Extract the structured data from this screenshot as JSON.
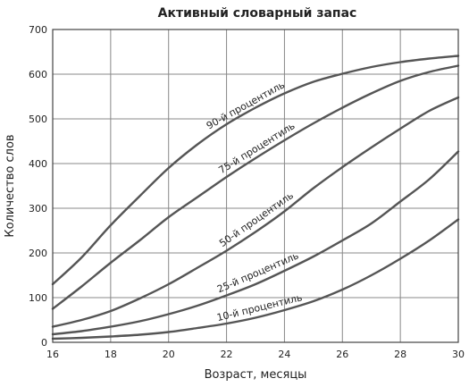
{
  "chart_data": {
    "type": "line",
    "title": "Активный словарный запас",
    "xlabel": "Возраст, месяцы",
    "ylabel": "Количество слов",
    "xlim": [
      16,
      30
    ],
    "ylim": [
      0,
      700
    ],
    "x_ticks": [
      "16",
      "18",
      "20",
      "22",
      "24",
      "26",
      "28",
      "30"
    ],
    "y_ticks": [
      "0",
      "100",
      "200",
      "300",
      "400",
      "500",
      "600",
      "700"
    ],
    "grid": true,
    "legend": "none (series labeled directly on curves)",
    "colors": {
      "curve": "#555555",
      "grid": "#888888",
      "text": "#222222"
    },
    "series": [
      {
        "name": "90-й процентиль",
        "points": [
          [
            16,
            130
          ],
          [
            17,
            190
          ],
          [
            18,
            262
          ],
          [
            19,
            327
          ],
          [
            20,
            390
          ],
          [
            21,
            443
          ],
          [
            22,
            488
          ],
          [
            23,
            525
          ],
          [
            24,
            557
          ],
          [
            25,
            583
          ],
          [
            26,
            601
          ],
          [
            27,
            616
          ],
          [
            28,
            627
          ],
          [
            29,
            635
          ],
          [
            30,
            641
          ]
        ]
      },
      {
        "name": "75-й процентиль",
        "points": [
          [
            16,
            75
          ],
          [
            17,
            125
          ],
          [
            18,
            178
          ],
          [
            19,
            228
          ],
          [
            20,
            280
          ],
          [
            21,
            325
          ],
          [
            22,
            370
          ],
          [
            23,
            412
          ],
          [
            24,
            452
          ],
          [
            25,
            490
          ],
          [
            26,
            525
          ],
          [
            27,
            557
          ],
          [
            28,
            585
          ],
          [
            29,
            605
          ],
          [
            30,
            619
          ]
        ]
      },
      {
        "name": "50-й процентиль",
        "points": [
          [
            16,
            35
          ],
          [
            17,
            50
          ],
          [
            18,
            70
          ],
          [
            19,
            98
          ],
          [
            20,
            130
          ],
          [
            21,
            167
          ],
          [
            22,
            205
          ],
          [
            23,
            247
          ],
          [
            24,
            293
          ],
          [
            25,
            345
          ],
          [
            26,
            392
          ],
          [
            27,
            436
          ],
          [
            28,
            478
          ],
          [
            29,
            518
          ],
          [
            30,
            548
          ]
        ]
      },
      {
        "name": "25-й процентиль",
        "points": [
          [
            16,
            18
          ],
          [
            17,
            25
          ],
          [
            18,
            35
          ],
          [
            19,
            47
          ],
          [
            20,
            63
          ],
          [
            21,
            82
          ],
          [
            22,
            105
          ],
          [
            23,
            130
          ],
          [
            24,
            160
          ],
          [
            25,
            192
          ],
          [
            26,
            228
          ],
          [
            27,
            266
          ],
          [
            28,
            315
          ],
          [
            29,
            365
          ],
          [
            30,
            427
          ]
        ]
      },
      {
        "name": "10-й процентиль",
        "points": [
          [
            16,
            8
          ],
          [
            17,
            10
          ],
          [
            18,
            13
          ],
          [
            19,
            17
          ],
          [
            20,
            23
          ],
          [
            21,
            32
          ],
          [
            22,
            42
          ],
          [
            23,
            55
          ],
          [
            24,
            72
          ],
          [
            25,
            92
          ],
          [
            26,
            118
          ],
          [
            27,
            150
          ],
          [
            28,
            187
          ],
          [
            29,
            228
          ],
          [
            30,
            275
          ]
        ]
      }
    ]
  }
}
